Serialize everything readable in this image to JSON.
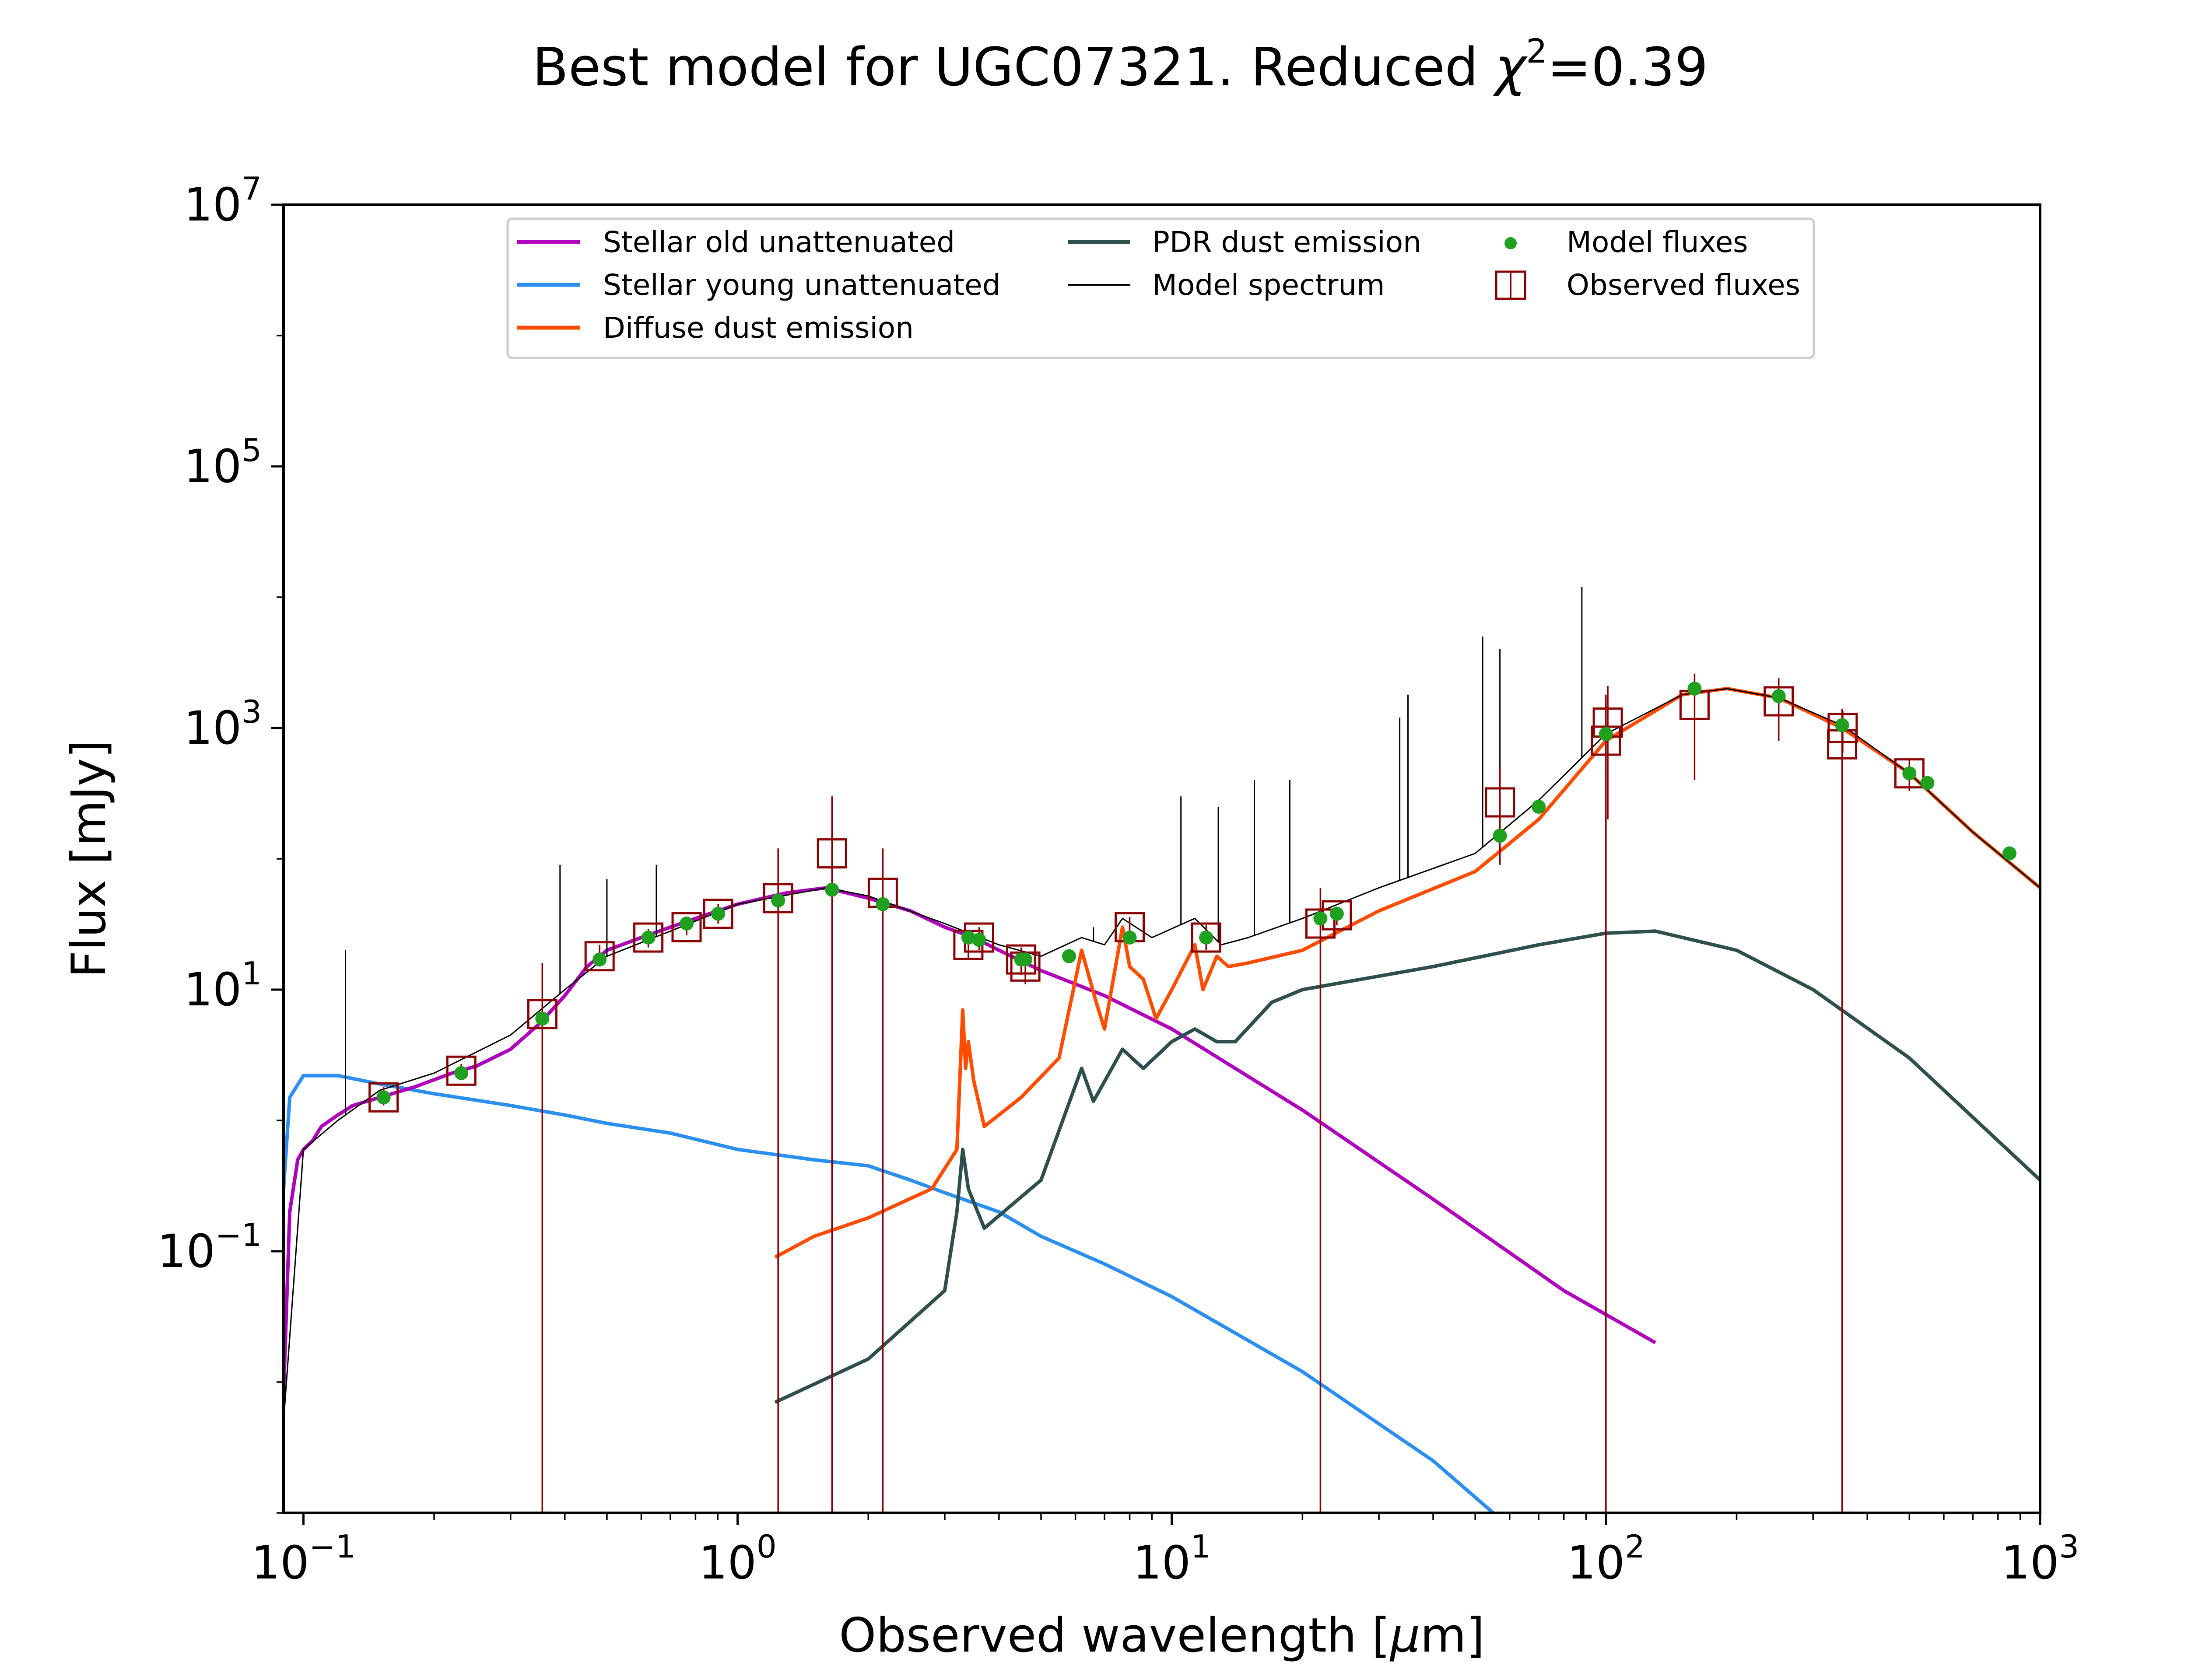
{
  "chart_data": {
    "type": "line",
    "title": "Best model for UGC07321. Reduced χ²=0.39",
    "title_main": "Best model for UGC07321. Reduced ",
    "title_chi": "χ",
    "title_sup": "2",
    "title_tail": "=0.39",
    "xlabel": "Observed wavelength [μm]",
    "xlabel_main": "Observed wavelength [",
    "xlabel_mu": "μ",
    "xlabel_tail": "m]",
    "ylabel": "Flux [mJy]",
    "xscale": "log",
    "yscale": "log",
    "xlim": [
      0.09,
      1000
    ],
    "ylim": [
      0.001,
      10000000
    ],
    "x_ticks": [
      {
        "value": 0.1,
        "base": "10",
        "exp": "−1"
      },
      {
        "value": 1,
        "base": "10",
        "exp": "0"
      },
      {
        "value": 10,
        "base": "10",
        "exp": "1"
      },
      {
        "value": 100,
        "base": "10",
        "exp": "2"
      },
      {
        "value": 1000,
        "base": "10",
        "exp": "3"
      }
    ],
    "y_ticks": [
      {
        "value": 0.1,
        "base": "10",
        "exp": "−1"
      },
      {
        "value": 10,
        "base": "10",
        "exp": "1"
      },
      {
        "value": 1000,
        "base": "10",
        "exp": "3"
      },
      {
        "value": 100000,
        "base": "10",
        "exp": "5"
      },
      {
        "value": 10000000,
        "base": "10",
        "exp": "7"
      }
    ],
    "legend_position": "top-center",
    "series": [
      {
        "name": "Stellar old unattenuated",
        "color": "#b000bd",
        "kind": "line",
        "points": [
          [
            0.09,
            0.008
          ],
          [
            0.093,
            0.2
          ],
          [
            0.097,
            0.5
          ],
          [
            0.1,
            0.6
          ],
          [
            0.105,
            0.7
          ],
          [
            0.11,
            0.9
          ],
          [
            0.12,
            1.1
          ],
          [
            0.13,
            1.3
          ],
          [
            0.15,
            1.5
          ],
          [
            0.18,
            1.8
          ],
          [
            0.22,
            2.3
          ],
          [
            0.25,
            2.6
          ],
          [
            0.3,
            3.5
          ],
          [
            0.35,
            5.5
          ],
          [
            0.4,
            9
          ],
          [
            0.45,
            15
          ],
          [
            0.5,
            20
          ],
          [
            0.6,
            25
          ],
          [
            0.7,
            30
          ],
          [
            0.8,
            35
          ],
          [
            1.0,
            45
          ],
          [
            1.3,
            55
          ],
          [
            1.6,
            60
          ],
          [
            2.0,
            50
          ],
          [
            2.5,
            40
          ],
          [
            3.0,
            30
          ],
          [
            3.5,
            25
          ],
          [
            4.0,
            20
          ],
          [
            5.0,
            14
          ],
          [
            7.0,
            9
          ],
          [
            10.0,
            5
          ],
          [
            20.0,
            1.2
          ],
          [
            40.0,
            0.25
          ],
          [
            80.0,
            0.05
          ],
          [
            130.0,
            0.02
          ]
        ]
      },
      {
        "name": "Stellar young unattenuated",
        "color": "#2a8ff0",
        "kind": "line",
        "points": [
          [
            0.09,
            0.3
          ],
          [
            0.093,
            1.5
          ],
          [
            0.1,
            2.2
          ],
          [
            0.12,
            2.2
          ],
          [
            0.15,
            1.9
          ],
          [
            0.2,
            1.6
          ],
          [
            0.3,
            1.3
          ],
          [
            0.4,
            1.1
          ],
          [
            0.5,
            0.95
          ],
          [
            0.7,
            0.8
          ],
          [
            1.0,
            0.6
          ],
          [
            1.5,
            0.5
          ],
          [
            2.0,
            0.45
          ],
          [
            2.5,
            0.35
          ],
          [
            3.0,
            0.28
          ],
          [
            4.0,
            0.2
          ],
          [
            5.0,
            0.13
          ],
          [
            7.0,
            0.08
          ],
          [
            10.0,
            0.045
          ],
          [
            20.0,
            0.012
          ],
          [
            40.0,
            0.0025
          ],
          [
            55.0,
            0.001
          ]
        ]
      },
      {
        "name": "Diffuse dust emission",
        "color": "#ff4c00",
        "kind": "line",
        "points": [
          [
            1.22,
            0.09
          ],
          [
            1.5,
            0.13
          ],
          [
            2.0,
            0.18
          ],
          [
            2.8,
            0.3
          ],
          [
            3.2,
            0.6
          ],
          [
            3.3,
            7
          ],
          [
            3.35,
            2.5
          ],
          [
            3.4,
            4
          ],
          [
            3.5,
            2
          ],
          [
            3.7,
            0.9
          ],
          [
            4.5,
            1.5
          ],
          [
            5.5,
            3
          ],
          [
            6.2,
            20
          ],
          [
            6.7,
            8
          ],
          [
            7.0,
            5
          ],
          [
            7.7,
            30
          ],
          [
            8.0,
            15
          ],
          [
            8.6,
            12
          ],
          [
            9.2,
            6
          ],
          [
            10.0,
            10
          ],
          [
            11.3,
            22
          ],
          [
            11.8,
            10
          ],
          [
            12.7,
            18
          ],
          [
            13.5,
            15
          ],
          [
            15.0,
            16
          ],
          [
            20.0,
            20
          ],
          [
            30.0,
            40
          ],
          [
            50.0,
            80
          ],
          [
            70.0,
            200
          ],
          [
            100.0,
            800
          ],
          [
            150.0,
            1800
          ],
          [
            190.0,
            2000
          ],
          [
            250.0,
            1700
          ],
          [
            350.0,
            1000
          ],
          [
            500.0,
            450
          ],
          [
            700.0,
            160
          ],
          [
            1000.0,
            60
          ]
        ]
      },
      {
        "name": "PDR dust emission",
        "color": "#2f4f4f",
        "kind": "line",
        "points": [
          [
            1.22,
            0.007
          ],
          [
            2.0,
            0.015
          ],
          [
            3.0,
            0.05
          ],
          [
            3.2,
            0.2
          ],
          [
            3.3,
            0.6
          ],
          [
            3.4,
            0.3
          ],
          [
            3.7,
            0.15
          ],
          [
            5.0,
            0.35
          ],
          [
            6.2,
            2.5
          ],
          [
            6.6,
            1.4
          ],
          [
            7.7,
            3.5
          ],
          [
            8.6,
            2.5
          ],
          [
            10.0,
            4
          ],
          [
            11.3,
            5
          ],
          [
            12.7,
            4
          ],
          [
            14.0,
            4
          ],
          [
            17.0,
            8
          ],
          [
            20.0,
            10
          ],
          [
            40.0,
            15
          ],
          [
            70.0,
            22
          ],
          [
            100.0,
            27
          ],
          [
            130.0,
            28
          ],
          [
            200.0,
            20
          ],
          [
            300.0,
            10
          ],
          [
            500.0,
            3
          ],
          [
            1000.0,
            0.35
          ]
        ]
      },
      {
        "name": "Model spectrum",
        "color": "#000000",
        "kind": "line",
        "points": [
          [
            0.09,
            0.005
          ],
          [
            0.1,
            0.6
          ],
          [
            0.12,
            1.0
          ],
          [
            0.15,
            1.7
          ],
          [
            0.2,
            2.3
          ],
          [
            0.3,
            4.5
          ],
          [
            0.4,
            10
          ],
          [
            0.5,
            18
          ],
          [
            0.7,
            28
          ],
          [
            1.0,
            45
          ],
          [
            1.6,
            60
          ],
          [
            2.0,
            52
          ],
          [
            3.0,
            32
          ],
          [
            4.0,
            22
          ],
          [
            5.0,
            18
          ],
          [
            6.2,
            25
          ],
          [
            7.0,
            22
          ],
          [
            7.7,
            35
          ],
          [
            9.0,
            25
          ],
          [
            11.3,
            35
          ],
          [
            13.0,
            22
          ],
          [
            15.0,
            25
          ],
          [
            20.0,
            35
          ],
          [
            30.0,
            60
          ],
          [
            50.0,
            110
          ],
          [
            70.0,
            280
          ],
          [
            100.0,
            900
          ],
          [
            150.0,
            1800
          ],
          [
            190.0,
            2000
          ],
          [
            250.0,
            1700
          ],
          [
            350.0,
            1050
          ],
          [
            500.0,
            450
          ],
          [
            700.0,
            160
          ],
          [
            1000.0,
            60
          ]
        ],
        "lines": [
          [
            0.125,
            20
          ],
          [
            0.39,
            90
          ],
          [
            0.5,
            70
          ],
          [
            0.65,
            90
          ],
          [
            6.6,
            30
          ],
          [
            10.5,
            300
          ],
          [
            12.8,
            250
          ],
          [
            15.5,
            400
          ],
          [
            18.7,
            400
          ],
          [
            33.5,
            1200
          ],
          [
            35.0,
            1800
          ],
          [
            52.0,
            5000
          ],
          [
            57.0,
            4000
          ],
          [
            88.0,
            12000
          ]
        ]
      },
      {
        "name": "Model fluxes",
        "color": "#1fa01f",
        "kind": "scatter",
        "points": [
          [
            0.153,
            1.5
          ],
          [
            0.231,
            2.3
          ],
          [
            0.355,
            6
          ],
          [
            0.481,
            17
          ],
          [
            0.623,
            25
          ],
          [
            0.763,
            32
          ],
          [
            0.902,
            38
          ],
          [
            1.24,
            48
          ],
          [
            1.65,
            58
          ],
          [
            2.16,
            45
          ],
          [
            3.4,
            25
          ],
          [
            3.6,
            24
          ],
          [
            4.5,
            17
          ],
          [
            4.6,
            17
          ],
          [
            5.8,
            18
          ],
          [
            8.0,
            25
          ],
          [
            12.0,
            25
          ],
          [
            22.0,
            35
          ],
          [
            24.0,
            38
          ],
          [
            57.0,
            150
          ],
          [
            70.0,
            250
          ],
          [
            100.0,
            900
          ],
          [
            160.0,
            2000
          ],
          [
            250.0,
            1750
          ],
          [
            350.0,
            1050
          ],
          [
            500.0,
            450
          ],
          [
            550.0,
            380
          ],
          [
            850.0,
            110
          ]
        ]
      },
      {
        "name": "Observed fluxes",
        "color": "#8b0000",
        "kind": "errorbar",
        "points": [
          {
            "x": 0.153,
            "y": 1.5,
            "lo": 1.3,
            "hi": 1.8
          },
          {
            "x": 0.231,
            "y": 2.4,
            "lo": 2.2,
            "hi": 2.7
          },
          {
            "x": 0.355,
            "y": 6.5,
            "lo": 0.001,
            "hi": 16
          },
          {
            "x": 0.481,
            "y": 18,
            "lo": 15,
            "hi": 22
          },
          {
            "x": 0.623,
            "y": 25,
            "lo": 21,
            "hi": 29
          },
          {
            "x": 0.763,
            "y": 30,
            "lo": 26,
            "hi": 35
          },
          {
            "x": 0.902,
            "y": 38,
            "lo": 32,
            "hi": 45
          },
          {
            "x": 1.24,
            "y": 50,
            "lo": 0.001,
            "hi": 120
          },
          {
            "x": 1.65,
            "y": 110,
            "lo": 0.001,
            "hi": 300
          },
          {
            "x": 2.16,
            "y": 55,
            "lo": 0.001,
            "hi": 120
          },
          {
            "x": 3.4,
            "y": 22,
            "lo": 17,
            "hi": 28
          },
          {
            "x": 3.6,
            "y": 25,
            "lo": 20,
            "hi": 30
          },
          {
            "x": 4.5,
            "y": 17,
            "lo": 13,
            "hi": 21
          },
          {
            "x": 4.6,
            "y": 15,
            "lo": 11,
            "hi": 19
          },
          {
            "x": 8.0,
            "y": 30,
            "lo": 24,
            "hi": 36
          },
          {
            "x": 12.0,
            "y": 25,
            "lo": 20,
            "hi": 31
          },
          {
            "x": 22.0,
            "y": 32,
            "lo": 0.001,
            "hi": 60
          },
          {
            "x": 24.0,
            "y": 37,
            "lo": 31,
            "hi": 43
          },
          {
            "x": 57.0,
            "y": 270,
            "lo": 90,
            "hi": 500
          },
          {
            "x": 100.0,
            "y": 800,
            "lo": 0.001,
            "hi": 1800
          },
          {
            "x": 101.0,
            "y": 1100,
            "lo": 200,
            "hi": 2100
          },
          {
            "x": 160.0,
            "y": 1500,
            "lo": 400,
            "hi": 2600
          },
          {
            "x": 250.0,
            "y": 1600,
            "lo": 800,
            "hi": 2400
          },
          {
            "x": 350.0,
            "y": 750,
            "lo": 0.001,
            "hi": 1400
          },
          {
            "x": 351.0,
            "y": 1000,
            "lo": 650,
            "hi": 1350
          },
          {
            "x": 500.0,
            "y": 450,
            "lo": 330,
            "hi": 570
          }
        ]
      }
    ]
  }
}
